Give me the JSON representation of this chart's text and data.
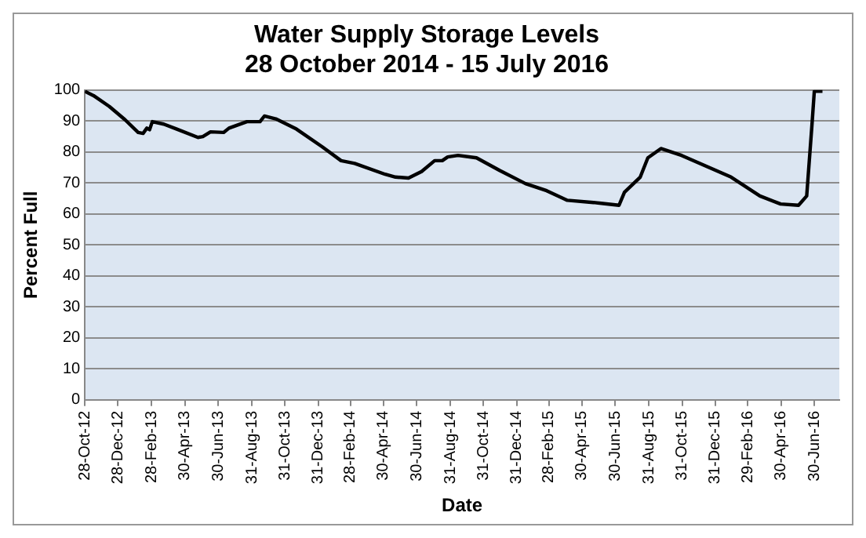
{
  "chart_data": {
    "type": "line",
    "title": "Water Supply Storage Levels\n28 October 2014 - 15 July 2016",
    "xlabel": "Date",
    "ylabel": "Percent Full",
    "x": [
      "2012-10-28",
      "2012-11-13",
      "2012-12-12",
      "2013-01-10",
      "2013-02-03",
      "2013-02-12",
      "2013-02-19",
      "2013-02-24",
      "2013-03-01",
      "2013-03-22",
      "2013-04-15",
      "2013-05-24",
      "2013-06-02",
      "2013-06-16",
      "2013-07-10",
      "2013-07-20",
      "2013-08-22",
      "2013-09-15",
      "2013-09-23",
      "2013-10-14",
      "2013-11-21",
      "2014-01-08",
      "2014-02-11",
      "2014-03-08",
      "2014-05-03",
      "2014-05-22",
      "2014-06-15",
      "2014-07-09",
      "2014-08-02",
      "2014-08-16",
      "2014-08-26",
      "2014-09-14",
      "2014-10-18",
      "2014-11-30",
      "2015-01-16",
      "2015-02-24",
      "2015-04-03",
      "2015-05-21",
      "2015-07-07",
      "2015-07-17",
      "2015-08-15",
      "2015-08-29",
      "2015-09-22",
      "2015-10-30",
      "2016-01-29",
      "2016-03-22",
      "2016-04-29",
      "2016-06-01",
      "2016-06-16",
      "2016-06-26",
      "2016-06-30",
      "2016-07-15"
    ],
    "series": [
      {
        "color": "#000000",
        "values": [
          99.6,
          98.2,
          94.7,
          90.4,
          86.3,
          86,
          87.7,
          87.2,
          89.8,
          89,
          87.4,
          84.7,
          85,
          86.5,
          86.3,
          87.7,
          89.8,
          89.8,
          91.6,
          90.7,
          87.4,
          81.6,
          77.2,
          76.3,
          72.8,
          71.9,
          71.6,
          73.7,
          77.2,
          77.2,
          78.4,
          78.9,
          78.1,
          74,
          69.8,
          67.5,
          64.4,
          63.7,
          62.8,
          67,
          71.9,
          78.1,
          81.1,
          78.9,
          71.9,
          65.8,
          63.2,
          62.8,
          65.8,
          89.5,
          99.6,
          99.6
        ]
      }
    ],
    "xlim": [
      "2012-10-28",
      "2016-08-15"
    ],
    "xticks": [
      {
        "value": "2012-10-28",
        "label": "28-Oct-12"
      },
      {
        "value": "2012-12-28",
        "label": "28-Dec-12"
      },
      {
        "value": "2013-02-28",
        "label": "28-Feb-13"
      },
      {
        "value": "2013-04-30",
        "label": "30-Apr-13"
      },
      {
        "value": "2013-06-30",
        "label": "30-Jun-13"
      },
      {
        "value": "2013-08-31",
        "label": "31-Aug-13"
      },
      {
        "value": "2013-10-31",
        "label": "31-Oct-13"
      },
      {
        "value": "2013-12-31",
        "label": "31-Dec-13"
      },
      {
        "value": "2014-02-28",
        "label": "28-Feb-14"
      },
      {
        "value": "2014-04-30",
        "label": "30-Apr-14"
      },
      {
        "value": "2014-06-30",
        "label": "30-Jun-14"
      },
      {
        "value": "2014-08-31",
        "label": "31-Aug-14"
      },
      {
        "value": "2014-10-31",
        "label": "31-Oct-14"
      },
      {
        "value": "2014-12-31",
        "label": "31-Dec-14"
      },
      {
        "value": "2015-02-28",
        "label": "28-Feb-15"
      },
      {
        "value": "2015-04-30",
        "label": "30-Apr-15"
      },
      {
        "value": "2015-06-30",
        "label": "30-Jun-15"
      },
      {
        "value": "2015-08-31",
        "label": "31-Aug-15"
      },
      {
        "value": "2015-10-31",
        "label": "31-Oct-15"
      },
      {
        "value": "2015-12-31",
        "label": "31-Dec-15"
      },
      {
        "value": "2016-02-29",
        "label": "29-Feb-16"
      },
      {
        "value": "2016-04-30",
        "label": "30-Apr-16"
      },
      {
        "value": "2016-06-30",
        "label": "30-Jun-16"
      }
    ],
    "ylim": [
      0,
      100
    ],
    "yticks": [
      0,
      10,
      20,
      30,
      40,
      50,
      60,
      70,
      80,
      90,
      100
    ],
    "grid": "y",
    "legend": false,
    "marker": "none",
    "line_style": "solid"
  }
}
